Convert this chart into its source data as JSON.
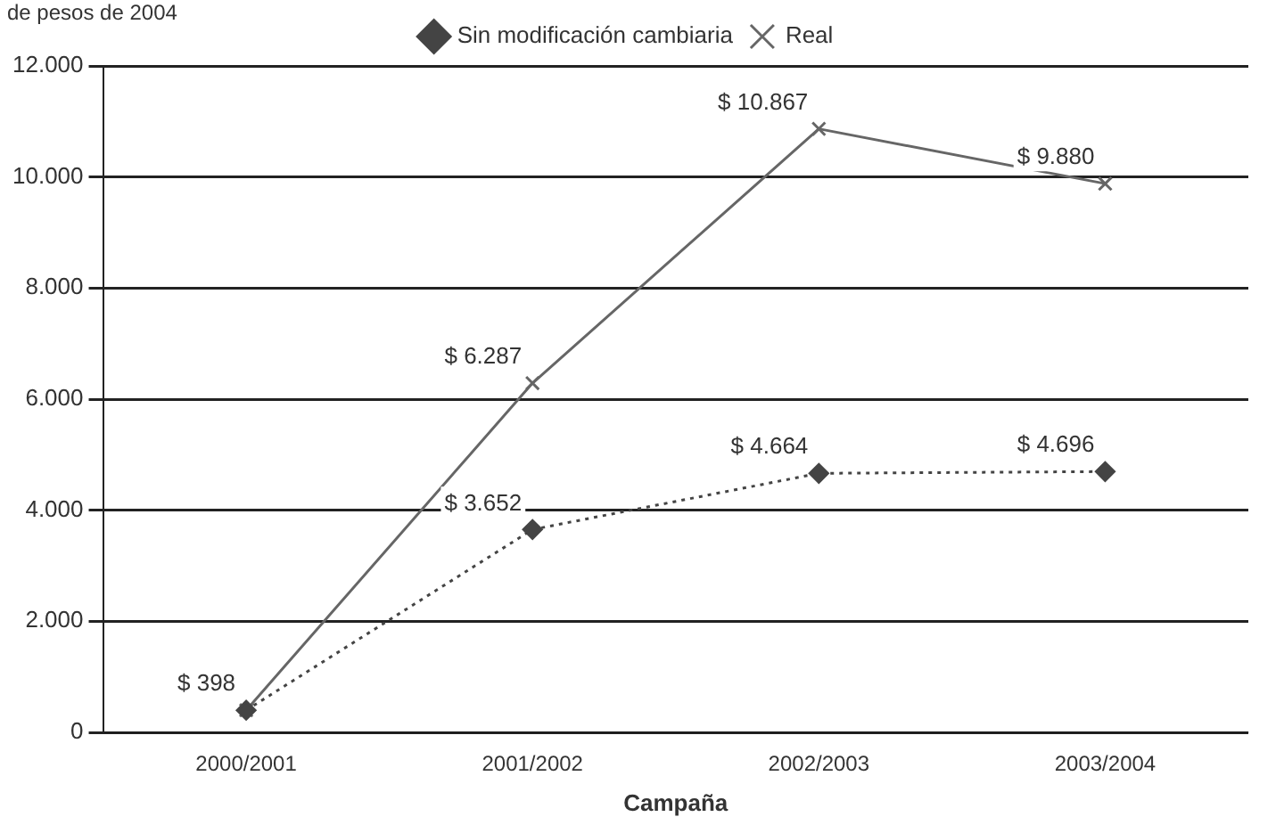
{
  "chart_data": {
    "type": "line",
    "ylabel": "de pesos de 2004",
    "xlabel": "Campaña",
    "categories": [
      "2000/2001",
      "2001/2002",
      "2002/2003",
      "2003/2004"
    ],
    "series": [
      {
        "name": "Sin modificación cambiaria",
        "color": "#444444",
        "values": [
          398,
          3652,
          4664,
          4696
        ],
        "marker": "diamond",
        "line_style": "dotted",
        "value_labels": [
          null,
          "$ 3.652",
          "$ 4.664",
          "$ 4.696"
        ]
      },
      {
        "name": "Real",
        "color": "#666666",
        "values": [
          398,
          6287,
          10867,
          9880
        ],
        "marker": "cross",
        "line_style": "solid",
        "value_labels": [
          "$ 398",
          "$ 6.287",
          "$ 10.867",
          "$ 9.880"
        ]
      }
    ],
    "ylim": [
      0,
      12000
    ],
    "yticks": [
      {
        "value": 0,
        "label": "0"
      },
      {
        "value": 2000,
        "label": "2.000"
      },
      {
        "value": 4000,
        "label": "4.000"
      },
      {
        "value": 6000,
        "label": "6.000"
      },
      {
        "value": 8000,
        "label": "8.000"
      },
      {
        "value": 10000,
        "label": "10.000"
      },
      {
        "value": 12000,
        "label": "12.000"
      }
    ],
    "grid": "y",
    "legend": "top"
  }
}
